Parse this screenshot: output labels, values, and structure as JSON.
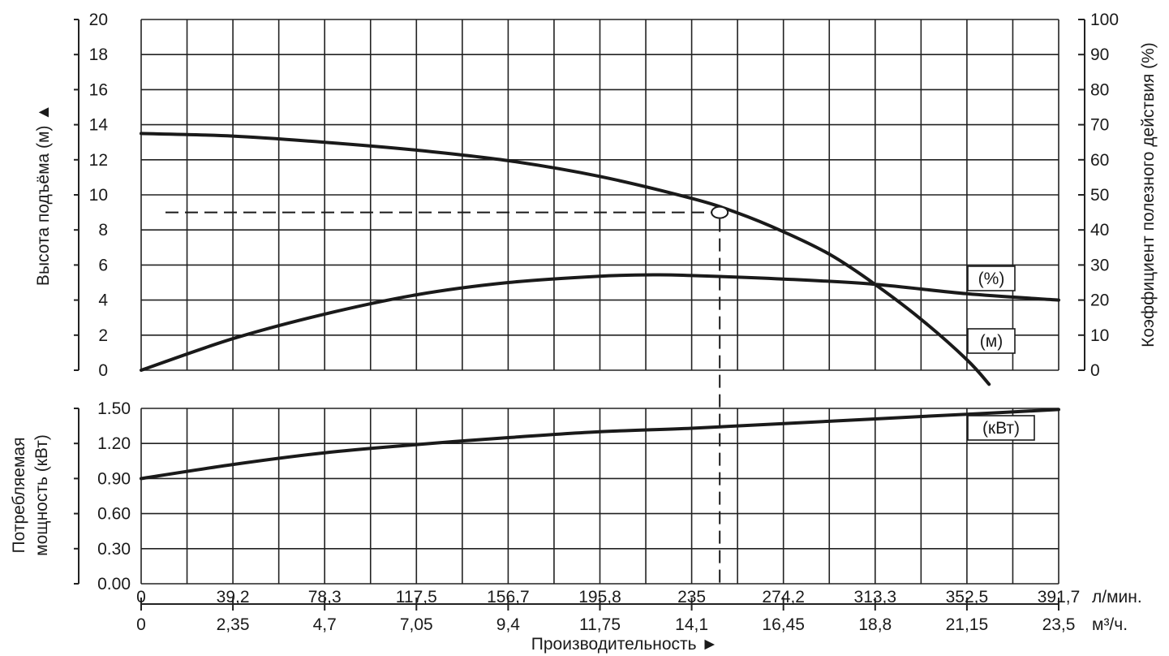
{
  "chart_data": [
    {
      "type": "line",
      "panel": "head-efficiency",
      "xlabel": "Производительность ►",
      "x_unit_primary": "л/мин.",
      "x_unit_secondary": "м³/ч.",
      "x_ticks_primary": [
        "0",
        "39,2",
        "78,3",
        "117,5",
        "156,7",
        "195,8",
        "235",
        "274,2",
        "313,3",
        "352,5",
        "391,7"
      ],
      "x_ticks_secondary": [
        "0",
        "2,35",
        "4,7",
        "7,05",
        "9,4",
        "11,75",
        "14,1",
        "16,45",
        "18,8",
        "21,15",
        "23,5"
      ],
      "xlim": [
        0,
        391.7
      ],
      "ylabel_left": "Высота подъёма (м) ▲",
      "ylim_left": [
        0,
        20
      ],
      "y_ticks_left": [
        "0",
        "2",
        "4",
        "6",
        "8",
        "10",
        "12",
        "14",
        "16",
        "18",
        "20"
      ],
      "ylabel_right": "Коэффициент полезного действия (%)",
      "ylim_right": [
        0,
        100
      ],
      "y_ticks_right": [
        "0",
        "10",
        "20",
        "30",
        "40",
        "50",
        "60",
        "70",
        "80",
        "90",
        "100"
      ],
      "grid": true,
      "series": [
        {
          "name": "(м)",
          "axis": "left",
          "x": [
            0,
            39.2,
            78.3,
            117.5,
            156.7,
            195.8,
            235,
            254,
            274.2,
            294,
            313.3,
            333,
            352.5,
            362
          ],
          "y": [
            13.5,
            13.35,
            13.0,
            12.55,
            11.95,
            11.05,
            9.8,
            9.0,
            7.9,
            6.6,
            4.9,
            2.9,
            0.6,
            -0.8
          ]
        },
        {
          "name": "(%)",
          "axis": "right",
          "x": [
            0,
            39.2,
            78.3,
            117.5,
            156.7,
            195.8,
            220,
            235,
            274.2,
            313.3,
            352.5,
            391.7
          ],
          "y": [
            0,
            9,
            16,
            21.5,
            25,
            26.8,
            27.2,
            27,
            26,
            24.5,
            21.8,
            20
          ]
        }
      ],
      "operating_point": {
        "x": 247,
        "y": 9.0
      }
    },
    {
      "type": "line",
      "panel": "power",
      "ylabel": "Потребляемая мощность (кВт)",
      "ylim": [
        0,
        1.5
      ],
      "y_ticks": [
        "0.00",
        "0.30",
        "0.60",
        "0.90",
        "1.20",
        "1.50"
      ],
      "grid": true,
      "series": [
        {
          "name": "(кВт)",
          "x": [
            0,
            39.2,
            78.3,
            117.5,
            156.7,
            195.8,
            235,
            274.2,
            313.3,
            352.5,
            391.7
          ],
          "y": [
            0.9,
            1.02,
            1.12,
            1.19,
            1.25,
            1.3,
            1.33,
            1.37,
            1.41,
            1.45,
            1.49
          ]
        }
      ]
    }
  ]
}
